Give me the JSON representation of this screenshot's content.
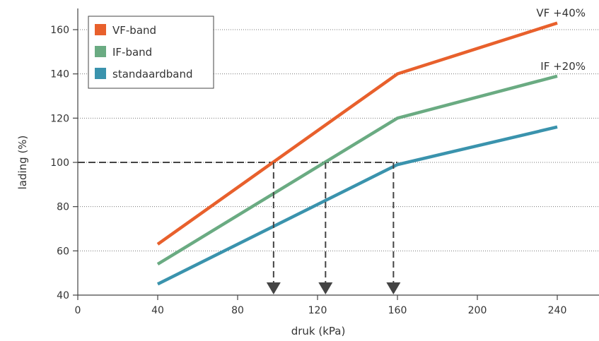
{
  "chart_data": {
    "type": "line",
    "xlabel": "druk (kPa)",
    "ylabel": "lading (%)",
    "xlim": [
      0,
      260
    ],
    "ylim": [
      40,
      170
    ],
    "xticks": [
      0,
      40,
      80,
      120,
      160,
      200,
      240
    ],
    "yticks": [
      40,
      60,
      80,
      100,
      120,
      140,
      160
    ],
    "grid": "horizontal dotted",
    "legend_position": "top-left",
    "series": [
      {
        "name": "VF-band",
        "color": "#e8602c",
        "x": [
          40,
          160,
          240
        ],
        "y": [
          63,
          140,
          163
        ]
      },
      {
        "name": "IF-band",
        "color": "#6aab82",
        "x": [
          40,
          160,
          240
        ],
        "y": [
          54,
          120,
          139
        ]
      },
      {
        "name": "standaardband",
        "color": "#3a93ad",
        "x": [
          40,
          160,
          240
        ],
        "y": [
          45,
          99,
          116
        ]
      }
    ],
    "reference_line": {
      "y": 100,
      "x_end": 160
    },
    "drop_markers": [
      {
        "series": "VF-band",
        "x": 98
      },
      {
        "series": "IF-band",
        "x": 124
      },
      {
        "series": "standaardband",
        "x": 158
      }
    ],
    "annotations": [
      {
        "text": "VF +40%",
        "series": "VF-band"
      },
      {
        "text": "IF +20%",
        "series": "IF-band"
      }
    ]
  }
}
